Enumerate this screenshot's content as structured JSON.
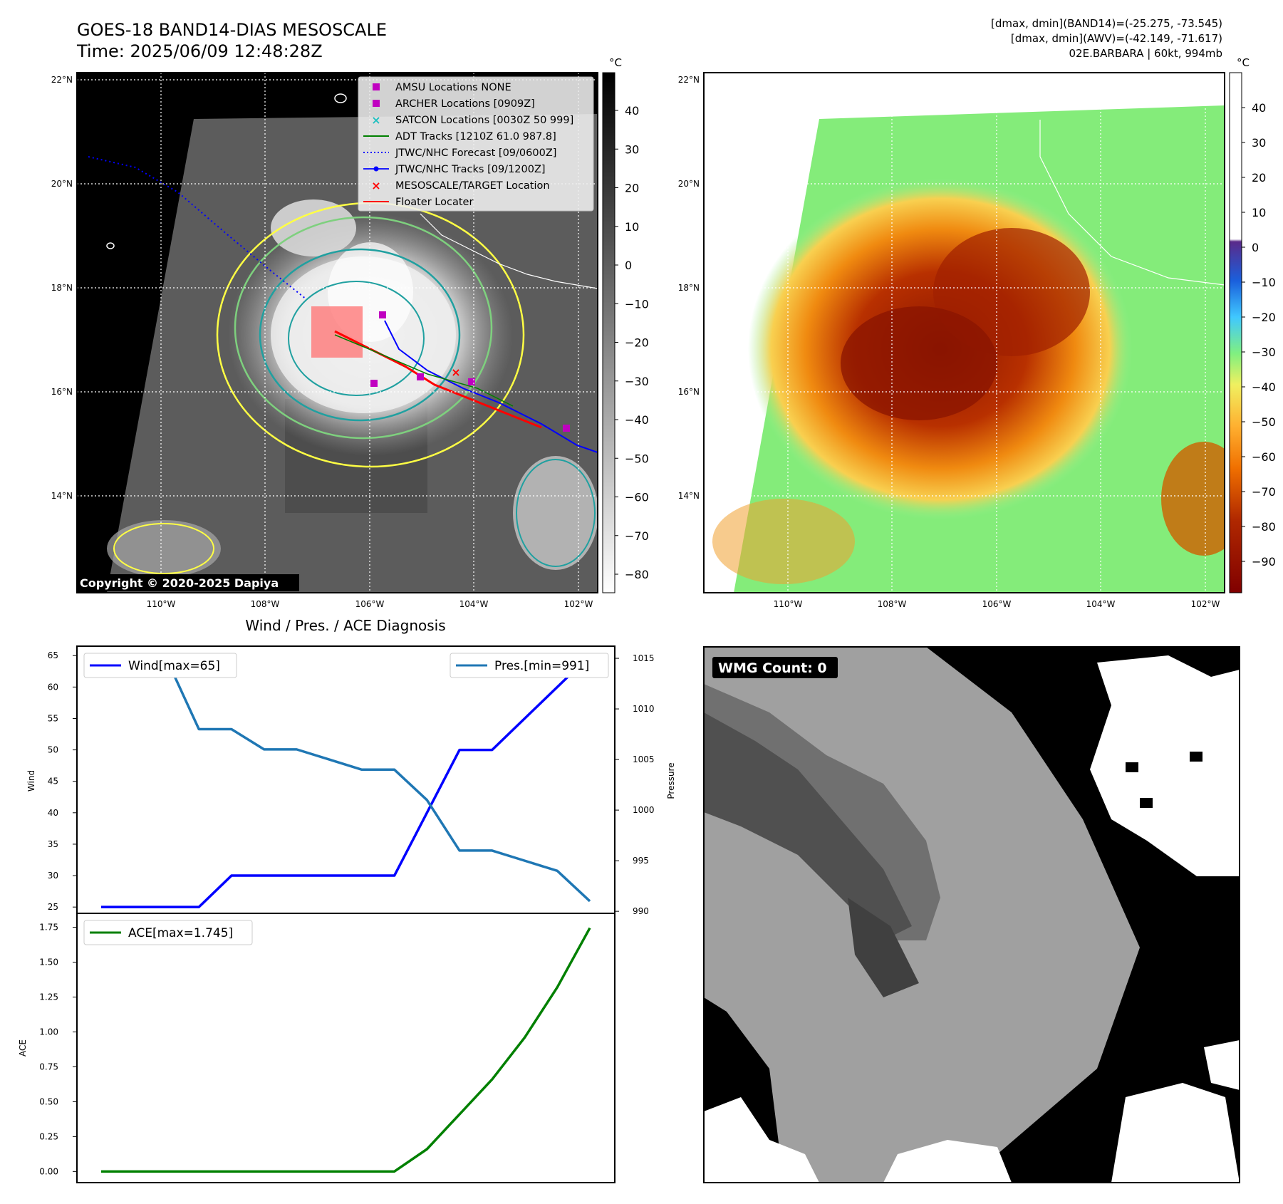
{
  "header": {
    "title_line1": "GOES-18 BAND14-DIAS MESOSCALE",
    "title_line2": "Time: 2025/06/09 12:48:28Z",
    "info_line1": "[dmax, dmin](BAND14)=(-25.275, -73.545)",
    "info_line2": "[dmax, dmin](AWV)=(-42.149, -71.617)",
    "info_line3": "02E.BARBARA | 60kt, 994mb"
  },
  "map": {
    "lat_labels": [
      "22°N",
      "20°N",
      "18°N",
      "16°N",
      "14°N"
    ],
    "lon_labels": [
      "110°W",
      "108°W",
      "106°W",
      "104°W",
      "102°W"
    ],
    "copyright": "Copyright © 2020-2025 Dapiya",
    "legend": [
      {
        "label": "AMSU Locations NONE",
        "color": "#c000c0",
        "marker": "square"
      },
      {
        "label": "ARCHER Locations [0909Z]",
        "color": "#c000c0",
        "marker": "square"
      },
      {
        "label": "SATCON Locations [0030Z 50 999]",
        "color": "#20c0c0",
        "marker": "x"
      },
      {
        "label": "ADT Tracks [1210Z 61.0 987.8]",
        "color": "#008000",
        "marker": "line"
      },
      {
        "label": "JTWC/NHC Forecast [09/0600Z]",
        "color": "#0000ff",
        "marker": "dotted"
      },
      {
        "label": "JTWC/NHC Tracks [09/1200Z]",
        "color": "#0000ff",
        "marker": "line-dot"
      },
      {
        "label": "MESOSCALE/TARGET Location",
        "color": "#ff0000",
        "marker": "x"
      },
      {
        "label": "Floater Locater",
        "color": "#ff0000",
        "marker": "line"
      }
    ]
  },
  "colorbar_gray": {
    "unit": "°C",
    "ticks": [
      "40",
      "30",
      "20",
      "10",
      "0",
      "−10",
      "−20",
      "−30",
      "−40",
      "−50",
      "−60",
      "−70",
      "−80"
    ]
  },
  "colorbar_color": {
    "unit": "°C",
    "ticks": [
      "40",
      "30",
      "20",
      "10",
      "0",
      "−10",
      "−20",
      "−30",
      "−40",
      "−50",
      "−60",
      "−70",
      "−80",
      "−90"
    ]
  },
  "wmg": {
    "label": "WMG Count: 0"
  },
  "chart_data": [
    {
      "type": "line",
      "title": "Wind / Pres. / ACE Diagnosis",
      "ylabel": "Wind",
      "ylabel_right": "Pressure",
      "ylim": [
        24,
        66.5
      ],
      "ylim_right": [
        989.8,
        1016.2
      ],
      "y_ticks": [
        "65",
        "60",
        "55",
        "50",
        "45",
        "40",
        "35",
        "30",
        "25"
      ],
      "y_ticks_right": [
        "1015",
        "1010",
        "1005",
        "1000",
        "995",
        "990"
      ],
      "x": [
        0,
        1,
        2,
        3,
        4,
        5,
        6,
        7,
        8,
        9,
        10,
        11,
        12,
        13,
        14,
        15
      ],
      "series": [
        {
          "name": "Wind[max=65]",
          "color": "#0000ff",
          "axis": "left",
          "values": [
            25,
            25,
            25,
            25,
            30,
            30,
            30,
            30,
            30,
            30,
            40,
            50,
            50,
            55,
            60,
            65
          ]
        },
        {
          "name": "Pres.[min=991]",
          "color": "#1f77b4",
          "axis": "right",
          "values": [
            1015,
            1015,
            1015,
            1008,
            1008,
            1006,
            1006,
            1005,
            1004,
            1004,
            1001,
            996,
            996,
            995,
            994,
            991
          ]
        }
      ]
    },
    {
      "type": "line",
      "ylabel": "ACE",
      "ylim": [
        -0.08,
        1.85
      ],
      "y_ticks": [
        "1.75",
        "1.50",
        "1.25",
        "1.00",
        "0.75",
        "0.50",
        "0.25",
        "0.00"
      ],
      "x": [
        0,
        1,
        2,
        3,
        4,
        5,
        6,
        7,
        8,
        9,
        10,
        11,
        12,
        13,
        14,
        15
      ],
      "series": [
        {
          "name": "ACE[max=1.745]",
          "color": "#008000",
          "values": [
            0,
            0,
            0,
            0,
            0,
            0,
            0,
            0,
            0,
            0,
            0.16,
            0.41,
            0.66,
            0.96,
            1.32,
            1.745
          ]
        }
      ]
    }
  ]
}
